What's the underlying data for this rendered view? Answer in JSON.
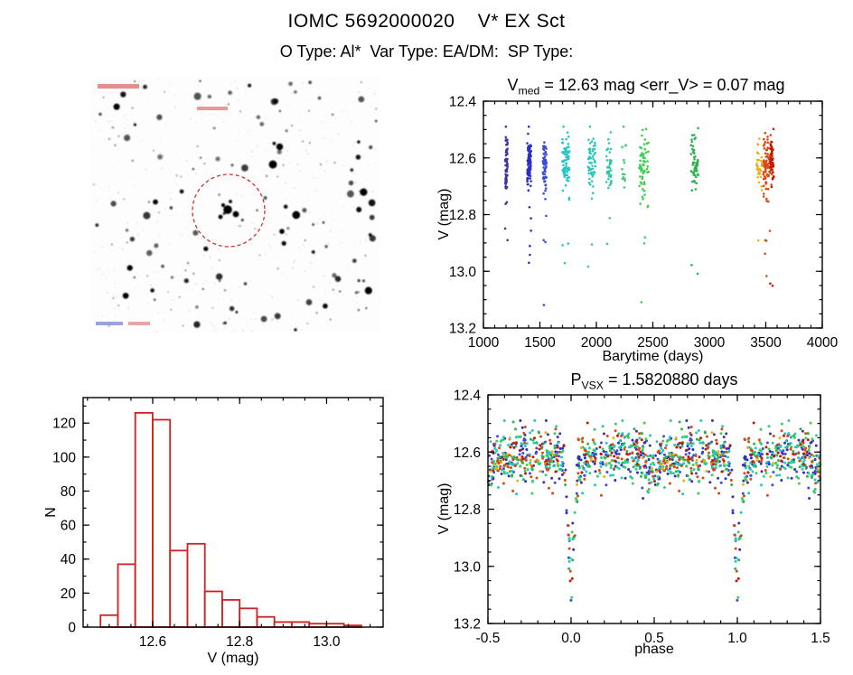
{
  "page": {
    "title": "IOMC 5692000020    V* EX Sct",
    "subtitle": "O Type: Al*  Var Type: EA/DM:  SP Type:"
  },
  "finder_chart": {
    "marker_color": "#cc2222",
    "secondary_mark_color": "#2233bb"
  },
  "chart_data": [
    {
      "id": "lightcurve",
      "type": "scatter",
      "title_parts": {
        "prefix": "V",
        "sub": "med",
        "rest": " = 12.63 mag <err_V> = 0.07 mag"
      },
      "v_med_mag": 12.63,
      "err_v_mag": 0.07,
      "xlabel": "Barytime (days)",
      "ylabel": "V (mag)",
      "xlim": [
        1000,
        4000
      ],
      "ylim": [
        12.4,
        13.2
      ],
      "y_axis_inverted": true,
      "xticks": [
        1000,
        1500,
        2000,
        2500,
        3000,
        3500,
        4000
      ],
      "xtick_labels": [
        "1000",
        "1500",
        "2000",
        "2500",
        "3000",
        "3500",
        "4000"
      ],
      "yticks": [
        12.4,
        12.6,
        12.8,
        13.0,
        13.2
      ],
      "ytick_labels": [
        "12.4",
        "12.6",
        "12.8",
        "13.0",
        "13.2"
      ],
      "xminor": 100,
      "yminor": 0.05,
      "model": {
        "period_days": 1.582088,
        "epoch": 1199.5,
        "mean_mag": 12.615,
        "scatter_mag": 0.048,
        "primary_eclipse": {
          "phase": 0.0,
          "half_width": 0.05,
          "depth_mag": 0.48
        },
        "secondary_eclipse": {
          "phase": 0.5,
          "half_width": 0.07,
          "depth_mag": 0.055
        }
      },
      "epoch_groups": [
        {
          "t_start": 1192,
          "t_end": 1214,
          "n": 60,
          "color": "#46309b"
        },
        {
          "t_start": 1388,
          "t_end": 1422,
          "n": 80,
          "color": "#2e2ebd"
        },
        {
          "t_start": 1526,
          "t_end": 1560,
          "n": 65,
          "color": "#3a4fd6"
        },
        {
          "t_start": 1698,
          "t_end": 1762,
          "n": 80,
          "color": "#26c6c6"
        },
        {
          "t_start": 1926,
          "t_end": 1992,
          "n": 60,
          "color": "#29c9b9"
        },
        {
          "t_start": 2088,
          "t_end": 2132,
          "n": 40,
          "color": "#2bc9a4"
        },
        {
          "t_start": 2228,
          "t_end": 2262,
          "n": 14,
          "color": "#3ecb7a"
        },
        {
          "t_start": 2378,
          "t_end": 2432,
          "n": 50,
          "color": "#3fcd57"
        },
        {
          "t_start": 2440,
          "t_end": 2462,
          "n": 12,
          "color": "#46ce46"
        },
        {
          "t_start": 2838,
          "t_end": 2902,
          "n": 60,
          "color": "#2fb24d"
        },
        {
          "t_start": 3418,
          "t_end": 3468,
          "n": 32,
          "color": "#e4b31c"
        },
        {
          "t_start": 3478,
          "t_end": 3556,
          "n": 95,
          "color": "#d94a10"
        },
        {
          "t_start": 3538,
          "t_end": 3572,
          "n": 45,
          "color": "#c21807"
        }
      ]
    },
    {
      "id": "histogram",
      "type": "bar",
      "xlabel": "V (mag)",
      "ylabel": "N",
      "bar_color": "#cc2222",
      "xlim": [
        12.44,
        13.13
      ],
      "ylim": [
        0,
        135
      ],
      "xticks": [
        12.6,
        12.8,
        13.0
      ],
      "xtick_labels": [
        "12.6",
        "12.8",
        "13.0"
      ],
      "yticks": [
        0,
        20,
        40,
        60,
        80,
        100,
        120
      ],
      "ytick_labels": [
        "0",
        "20",
        "40",
        "60",
        "80",
        "100",
        "120"
      ],
      "xminor": 0.05,
      "yminor": 10,
      "bin_start": 12.48,
      "bin_width": 0.04,
      "counts": [
        7,
        37,
        126,
        122,
        45,
        49,
        21,
        16,
        11,
        6,
        3,
        3,
        2,
        2,
        1
      ]
    },
    {
      "id": "phase",
      "type": "scatter",
      "title_parts": {
        "prefix": "P",
        "sub": "VSX",
        "rest": " = 1.5820880 days"
      },
      "period_days": 1.582088,
      "xlabel": "phase",
      "ylabel": "V (mag)",
      "xlim": [
        -0.5,
        1.5
      ],
      "ylim": [
        12.4,
        13.2
      ],
      "y_axis_inverted": true,
      "xticks": [
        -0.5,
        0.0,
        0.5,
        1.0,
        1.5
      ],
      "xtick_labels": [
        "-0.5",
        "0.0",
        "0.5",
        "1.0",
        "1.5"
      ],
      "yticks": [
        12.4,
        12.6,
        12.8,
        13.0,
        13.2
      ],
      "ytick_labels": [
        "12.4",
        "12.6",
        "12.8",
        "13.0",
        "13.2"
      ],
      "xminor": 0.1,
      "yminor": 0.05
    }
  ]
}
